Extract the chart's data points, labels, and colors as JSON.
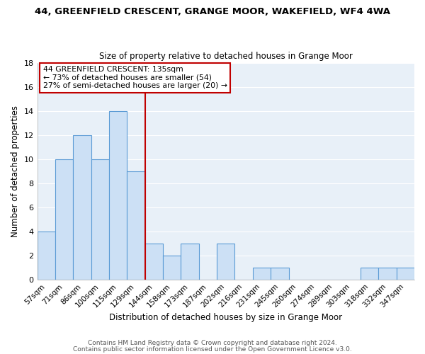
{
  "title": "44, GREENFIELD CRESCENT, GRANGE MOOR, WAKEFIELD, WF4 4WA",
  "subtitle": "Size of property relative to detached houses in Grange Moor",
  "xlabel": "Distribution of detached houses by size in Grange Moor",
  "ylabel": "Number of detached properties",
  "bin_labels": [
    "57sqm",
    "71sqm",
    "86sqm",
    "100sqm",
    "115sqm",
    "129sqm",
    "144sqm",
    "158sqm",
    "173sqm",
    "187sqm",
    "202sqm",
    "216sqm",
    "231sqm",
    "245sqm",
    "260sqm",
    "274sqm",
    "289sqm",
    "303sqm",
    "318sqm",
    "332sqm",
    "347sqm"
  ],
  "bar_heights": [
    4,
    10,
    12,
    10,
    14,
    9,
    3,
    2,
    3,
    0,
    3,
    0,
    1,
    1,
    0,
    0,
    0,
    0,
    1,
    1,
    1
  ],
  "bar_color": "#cce0f5",
  "bar_edge_color": "#5b9bd5",
  "reference_line_color": "#c00000",
  "ylim": [
    0,
    18
  ],
  "yticks": [
    0,
    2,
    4,
    6,
    8,
    10,
    12,
    14,
    16,
    18
  ],
  "annotation_title": "44 GREENFIELD CRESCENT: 135sqm",
  "annotation_line1": "← 73% of detached houses are smaller (54)",
  "annotation_line2": "27% of semi-detached houses are larger (20) →",
  "annotation_box_edge_color": "#c00000",
  "footer_line1": "Contains HM Land Registry data © Crown copyright and database right 2024.",
  "footer_line2": "Contains public sector information licensed under the Open Government Licence v3.0.",
  "bg_color": "#e8f0f8"
}
